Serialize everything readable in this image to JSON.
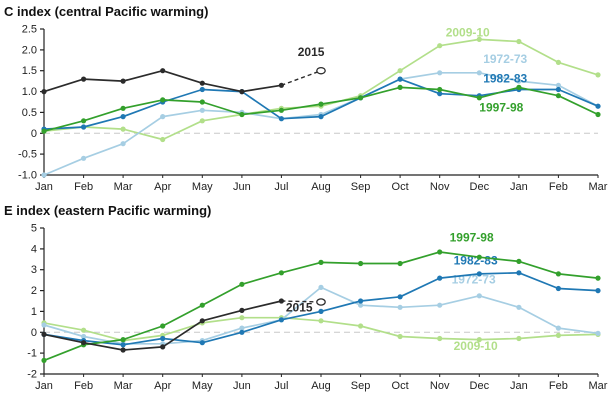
{
  "charts": [
    {
      "title": "C index (central Pacific warming)",
      "type": "line",
      "categories": [
        "Jan",
        "Feb",
        "Mar",
        "Apr",
        "May",
        "Jun",
        "Jul",
        "Aug",
        "Sep",
        "Oct",
        "Nov",
        "Dec",
        "Jan",
        "Feb",
        "Mar"
      ],
      "ylim": [
        -1.0,
        2.5
      ],
      "yticks": [
        -1.0,
        -0.5,
        0,
        0.5,
        1.0,
        1.5,
        2.0,
        2.5
      ],
      "ytick_labels": [
        "-1.0",
        "-0.5",
        "0",
        "0.5",
        "1.0",
        "1.5",
        "2.0",
        "2.5"
      ],
      "zero_line": 0,
      "grid": "zero-dashed-only",
      "legend_position": "inline-labels",
      "series": [
        {
          "name": "2009-10",
          "color": "#b2df8a",
          "values": [
            0.05,
            0.15,
            0.1,
            -0.15,
            0.3,
            0.45,
            0.6,
            0.65,
            0.9,
            1.5,
            2.1,
            2.25,
            2.2,
            1.7,
            1.4
          ],
          "label": {
            "x": 10.15,
            "y": 2.32,
            "anchor": "start"
          }
        },
        {
          "name": "1972-73",
          "color": "#a6cee3",
          "values": [
            -1.0,
            -0.6,
            -0.25,
            0.4,
            0.55,
            0.5,
            0.35,
            0.45,
            0.85,
            1.3,
            1.45,
            1.45,
            1.25,
            1.15,
            0.65
          ],
          "label": {
            "x": 11.1,
            "y": 1.68,
            "anchor": "start"
          }
        },
        {
          "name": "1982-83",
          "color": "#1f78b4",
          "values": [
            0.1,
            0.15,
            0.4,
            0.75,
            1.05,
            1.0,
            0.35,
            0.4,
            0.85,
            1.3,
            0.95,
            0.9,
            1.05,
            1.05,
            0.65
          ],
          "label": {
            "x": 11.1,
            "y": 1.22,
            "anchor": "start"
          }
        },
        {
          "name": "1997-98",
          "color": "#33a02c",
          "values": [
            0.05,
            0.3,
            0.6,
            0.8,
            0.75,
            0.45,
            0.55,
            0.7,
            0.85,
            1.1,
            1.05,
            0.85,
            1.1,
            0.9,
            0.45
          ],
          "label": {
            "x": 11.0,
            "y": 0.52,
            "anchor": "start"
          }
        },
        {
          "name": "2015",
          "color": "#2b2b2b",
          "values": [
            1.0,
            1.3,
            1.25,
            1.5,
            1.2,
            1.0,
            1.15,
            1.5,
            null,
            null,
            null,
            null,
            null,
            null,
            null
          ],
          "dash_from": 6,
          "open_last": true,
          "label": {
            "x": 6.75,
            "y": 1.85,
            "anchor": "middle"
          }
        }
      ]
    },
    {
      "title": "E index (eastern Pacific warming)",
      "type": "line",
      "categories": [
        "Jan",
        "Feb",
        "Mar",
        "Apr",
        "May",
        "Jun",
        "Jul",
        "Aug",
        "Sep",
        "Oct",
        "Nov",
        "Dec",
        "Jan",
        "Feb",
        "Mar"
      ],
      "ylim": [
        -2,
        5
      ],
      "yticks": [
        -2,
        -1,
        0,
        1,
        2,
        3,
        4,
        5
      ],
      "ytick_labels": [
        "-2",
        "-1",
        "0",
        "1",
        "2",
        "3",
        "4",
        "5"
      ],
      "zero_line": 0,
      "grid": "zero-dashed-only",
      "legend_position": "inline-labels",
      "series": [
        {
          "name": "2009-10",
          "color": "#b2df8a",
          "values": [
            0.45,
            0.1,
            -0.4,
            -0.15,
            0.45,
            0.7,
            0.7,
            0.55,
            0.3,
            -0.2,
            -0.3,
            -0.35,
            -0.3,
            -0.15,
            -0.1
          ],
          "label": {
            "x": 10.35,
            "y": -0.85,
            "anchor": "start"
          }
        },
        {
          "name": "1972-73",
          "color": "#a6cee3",
          "values": [
            0.35,
            -0.2,
            -0.55,
            -0.55,
            -0.4,
            0.2,
            0.6,
            2.15,
            1.3,
            1.2,
            1.3,
            1.75,
            1.2,
            0.2,
            -0.05
          ],
          "label": {
            "x": 10.3,
            "y": 2.35,
            "anchor": "start"
          }
        },
        {
          "name": "1982-83",
          "color": "#1f78b4",
          "values": [
            -0.1,
            -0.4,
            -0.6,
            -0.3,
            -0.5,
            0.0,
            0.6,
            1.0,
            1.5,
            1.7,
            2.6,
            2.8,
            2.85,
            2.1,
            2.0
          ],
          "label": {
            "x": 10.35,
            "y": 3.25,
            "anchor": "start"
          }
        },
        {
          "name": "1997-98",
          "color": "#33a02c",
          "values": [
            -1.35,
            -0.6,
            -0.35,
            0.3,
            1.3,
            2.3,
            2.85,
            3.35,
            3.3,
            3.3,
            3.85,
            3.6,
            3.4,
            2.8,
            2.6
          ],
          "label": {
            "x": 10.25,
            "y": 4.35,
            "anchor": "start"
          }
        },
        {
          "name": "2015",
          "color": "#2b2b2b",
          "values": [
            -0.1,
            -0.5,
            -0.85,
            -0.7,
            0.55,
            1.05,
            1.5,
            1.45,
            null,
            null,
            null,
            null,
            null,
            null,
            null
          ],
          "dash_from": 6,
          "open_last": true,
          "label": {
            "x": 6.45,
            "y": 1.0,
            "anchor": "middle"
          }
        }
      ]
    }
  ]
}
